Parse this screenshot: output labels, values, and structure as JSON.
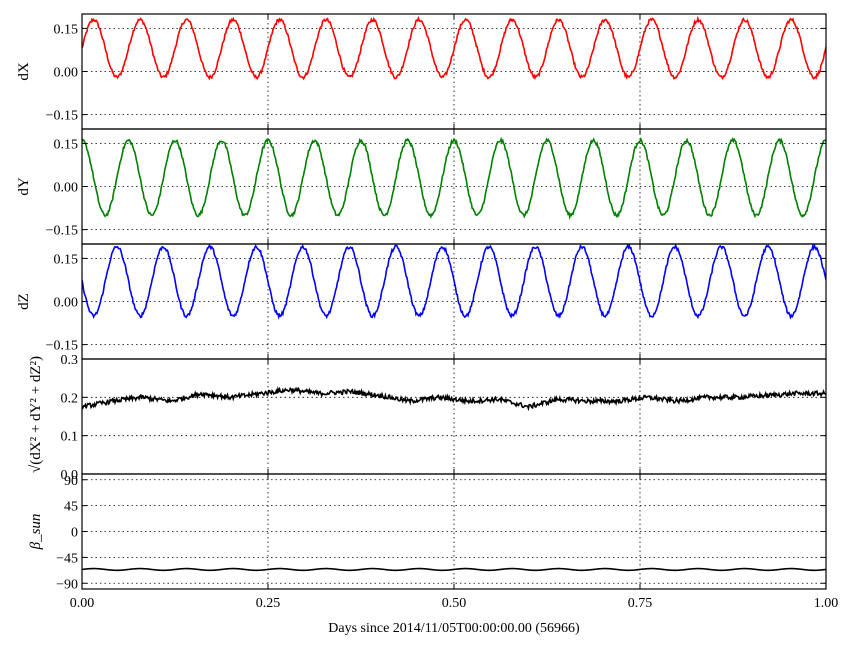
{
  "chart_data": {
    "type": "line",
    "xlabel": "Days since 2014/11/05T00:00:00.00 (56966)",
    "xlim": [
      0.0,
      1.0
    ],
    "xticks": [
      0.0,
      0.25,
      0.5,
      0.75,
      1.0
    ],
    "xtick_labels": [
      "0.00",
      "0.25",
      "0.50",
      "0.75",
      "1.00"
    ],
    "grid": true,
    "panels": [
      {
        "ylabel": "dX",
        "ylim": [
          -0.2,
          0.2
        ],
        "yticks": [
          -0.15,
          0.0,
          0.15
        ],
        "ytick_labels": [
          "−0.15",
          "0.00",
          "0.15"
        ],
        "color": "#ff0000",
        "series": [
          {
            "wave": {
              "mean": 0.08,
              "amplitude": 0.1,
              "periods": 16.0,
              "phase_start": 0.0,
              "noise": 0.006
            }
          }
        ]
      },
      {
        "ylabel": "dY",
        "ylim": [
          -0.2,
          0.2
        ],
        "yticks": [
          -0.15,
          0.0,
          0.15
        ],
        "ytick_labels": [
          "−0.15",
          "0.00",
          "0.15"
        ],
        "color": "#008000",
        "series": [
          {
            "wave": {
              "mean": 0.03,
              "amplitude": 0.13,
              "periods": 16.0,
              "phase_start": 0.25,
              "noise": 0.006
            }
          }
        ]
      },
      {
        "ylabel": "dZ",
        "ylim": [
          -0.2,
          0.2
        ],
        "yticks": [
          -0.15,
          0.0,
          0.15
        ],
        "ytick_labels": [
          "−0.15",
          "0.00",
          "0.15"
        ],
        "color": "#0000ff",
        "series": [
          {
            "wave": {
              "mean": 0.07,
              "amplitude": 0.12,
              "periods": 16.0,
              "phase_start": -0.5,
              "noise": 0.006
            }
          }
        ]
      },
      {
        "ylabel": "sqrt(dX^2+dY^2+dZ^2)",
        "ylim": [
          0.0,
          0.3
        ],
        "yticks": [
          0.0,
          0.1,
          0.2,
          0.3
        ],
        "ytick_labels": [
          "0.0",
          "0.1",
          "0.2",
          "0.3"
        ],
        "color": "#000000",
        "series": [
          {
            "x": [
              0.0,
              0.04,
              0.08,
              0.12,
              0.16,
              0.2,
              0.24,
              0.28,
              0.32,
              0.36,
              0.4,
              0.44,
              0.48,
              0.52,
              0.56,
              0.6,
              0.64,
              0.68,
              0.72,
              0.76,
              0.8,
              0.84,
              0.88,
              0.92,
              0.96,
              1.0
            ],
            "y": [
              0.175,
              0.19,
              0.2,
              0.19,
              0.21,
              0.2,
              0.21,
              0.22,
              0.21,
              0.215,
              0.205,
              0.19,
              0.2,
              0.19,
              0.195,
              0.175,
              0.195,
              0.19,
              0.19,
              0.2,
              0.19,
              0.2,
              0.2,
              0.205,
              0.21,
              0.21
            ],
            "noise": 0.006
          }
        ]
      },
      {
        "ylabel": "β_sun",
        "ylim": [
          -100,
          100
        ],
        "yticks": [
          -90,
          -45,
          0,
          45,
          90
        ],
        "ytick_labels": [
          "−90",
          "−45",
          "0",
          "45",
          "90"
        ],
        "color": "#000000",
        "series": [
          {
            "wave": {
              "mean": -66,
              "amplitude": 1.5,
              "periods": 16.0,
              "phase_start": 0.0,
              "noise": 0.0
            }
          }
        ]
      }
    ]
  }
}
